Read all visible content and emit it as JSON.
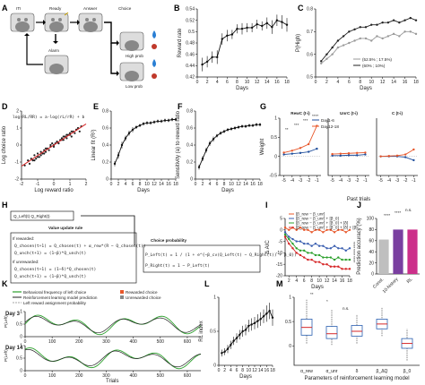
{
  "figure": {
    "panel_letters": [
      "A",
      "B",
      "C",
      "D",
      "E",
      "F",
      "G",
      "H",
      "I",
      "J",
      "K",
      "L",
      "M"
    ],
    "panelA": {
      "stage_labels": [
        "ITI",
        "Ready",
        "Answer",
        "Choice"
      ],
      "alarm": "Alarm",
      "high_prob": "High prob",
      "low_prob": "Low prob"
    },
    "panelD": {
      "equation": "log(RL/RR) = a·log(rL/rR) + b"
    },
    "panelH": {
      "q_top": "Q_Left(t)   Q_Right(t)",
      "update_title": "Value update rule",
      "if_rewarded": "If rewarded:",
      "rew_line1": "Q_chosen(t+1) = Q_chosen(t) + α_rew*(R − Q_chosen(t))",
      "rew_line2": "Q_unch(t+1) = (1−β)*Q_unch(t)",
      "if_unrewarded": "If unrewarded:",
      "unr_line1": "Q_chosen(t+1) = (1−δ)*Q_chosen(t)",
      "unr_line2": "Q_unch(t+1) = (1−β)*Q_unch(t)",
      "choice_title": "Choice probability",
      "p_left": "P_Left(t) = 1 / (1 + e^{−β_cv(Q_Left(t) − Q_Right(t)) + β_0})",
      "p_right": "P_Right(t) = 1 − P_Left(t)"
    },
    "panelK": {
      "legend": [
        "Behavioral frequency of left choice",
        "Reinforcement learning model prediction",
        "Left reward assignment probability",
        "Rewarded choice",
        "Unrewarded choice"
      ],
      "day3": "Day 3",
      "day14": "Day 14",
      "ylabel": "P(Left)",
      "xlabel": "Trials"
    }
  },
  "chart_data": [
    {
      "panel": "B",
      "type": "line",
      "xlabel": "Days",
      "ylabel": "Reward rate",
      "xticks": [
        0,
        2,
        4,
        6,
        8,
        10,
        12,
        14,
        16,
        18
      ],
      "yticks": [
        0.42,
        0.44,
        0.46,
        0.48,
        0.5,
        0.52,
        0.54
      ],
      "xlim": [
        0,
        18
      ],
      "ylim": [
        0.42,
        0.54
      ],
      "x": [
        1,
        2,
        3,
        4,
        5,
        6,
        7,
        8,
        9,
        10,
        11,
        12,
        13,
        14,
        15,
        16,
        17,
        18
      ],
      "values": [
        0.442,
        0.447,
        0.455,
        0.455,
        0.487,
        0.493,
        0.495,
        0.505,
        0.505,
        0.507,
        0.507,
        0.513,
        0.51,
        0.515,
        0.508,
        0.52,
        0.517,
        0.512
      ],
      "err": [
        0.012,
        0.01,
        0.01,
        0.012,
        0.01,
        0.01,
        0.008,
        0.008,
        0.01,
        0.008,
        0.008,
        0.008,
        0.008,
        0.01,
        0.012,
        0.01,
        0.012,
        0.012
      ]
    },
    {
      "panel": "C",
      "type": "line",
      "xlabel": "Days",
      "ylabel": "P(High)",
      "xticks": [
        0,
        2,
        4,
        6,
        8,
        10,
        12,
        14,
        16,
        18
      ],
      "yticks": [
        0.5,
        0.6,
        0.7,
        0.8
      ],
      "xlim": [
        0,
        18
      ],
      "ylim": [
        0.5,
        0.8
      ],
      "series": [
        {
          "name": "(52.5% ; 17.5%)",
          "color": "#999999",
          "values": [
            0.56,
            0.58,
            0.6,
            0.63,
            0.64,
            0.65,
            0.66,
            0.67,
            0.67,
            0.66,
            0.68,
            0.67,
            0.68,
            0.69,
            0.68,
            0.7,
            0.7,
            0.69
          ]
        },
        {
          "name": "(60% ; 10%)",
          "color": "#222222",
          "values": [
            0.57,
            0.6,
            0.63,
            0.66,
            0.68,
            0.7,
            0.71,
            0.72,
            0.72,
            0.73,
            0.73,
            0.74,
            0.74,
            0.75,
            0.74,
            0.75,
            0.76,
            0.75
          ]
        }
      ],
      "x": [
        1,
        2,
        3,
        4,
        5,
        6,
        7,
        8,
        9,
        10,
        11,
        12,
        13,
        14,
        15,
        16,
        17,
        18
      ]
    },
    {
      "panel": "D",
      "type": "scatter",
      "xlabel": "Log reward ratio",
      "ylabel": "Log choice ratio",
      "xticks": [
        -2,
        -1,
        0,
        1,
        2
      ],
      "yticks": [
        -2,
        -1,
        0,
        1,
        2
      ],
      "xlim": [
        -2,
        2
      ],
      "ylim": [
        -2,
        2
      ],
      "fit_line": {
        "slope": 0.62,
        "intercept": 0.0,
        "color": "#d62728"
      },
      "points_x": [
        -1.8,
        -1.6,
        -1.5,
        -1.4,
        -1.3,
        -1.2,
        -1.1,
        -1.0,
        -0.9,
        -0.8,
        -0.7,
        -0.6,
        -0.5,
        -0.4,
        -0.3,
        -0.2,
        -0.1,
        0.0,
        0.1,
        0.2,
        0.3,
        0.4,
        0.5,
        0.6,
        0.7,
        0.8,
        0.9,
        1.0,
        1.1,
        1.2,
        1.3,
        1.4,
        1.5,
        1.6,
        1.7,
        -1.2,
        -0.8,
        -0.5,
        -0.2,
        0.2,
        0.5,
        0.8,
        1.1,
        1.4,
        -1.0,
        -0.6,
        0.0,
        0.6,
        1.0
      ],
      "points_y": [
        -1.2,
        -0.9,
        -1.1,
        -0.8,
        -0.9,
        -0.6,
        -0.8,
        -0.5,
        -0.7,
        -0.4,
        -0.5,
        -0.3,
        -0.4,
        -0.2,
        -0.3,
        -0.1,
        0.1,
        0.0,
        0.1,
        0.2,
        0.1,
        0.3,
        0.4,
        0.3,
        0.5,
        0.4,
        0.6,
        0.7,
        0.5,
        0.8,
        0.7,
        0.9,
        1.0,
        0.8,
        1.1,
        -0.9,
        -0.6,
        -0.2,
        0.0,
        0.2,
        0.3,
        0.6,
        0.8,
        0.9,
        -0.7,
        -0.5,
        -0.1,
        0.5,
        0.6
      ]
    },
    {
      "panel": "E",
      "type": "line",
      "xlabel": "Days",
      "ylabel": "Linear fit (R²)",
      "xticks": [
        0,
        2,
        4,
        6,
        8,
        10,
        12,
        14,
        16,
        18
      ],
      "yticks": [
        0,
        0.2,
        0.4,
        0.6,
        0.8
      ],
      "xlim": [
        0,
        18
      ],
      "ylim": [
        0,
        0.8
      ],
      "x": [
        1,
        2,
        3,
        4,
        5,
        6,
        7,
        8,
        9,
        10,
        11,
        12,
        13,
        14,
        15,
        16,
        17,
        18
      ],
      "values": [
        0.18,
        0.28,
        0.4,
        0.48,
        0.54,
        0.58,
        0.61,
        0.63,
        0.65,
        0.66,
        0.66,
        0.67,
        0.68,
        0.68,
        0.69,
        0.69,
        0.7,
        0.7
      ],
      "err": [
        0.03,
        0.04,
        0.04,
        0.03,
        0.03,
        0.03,
        0.02,
        0.02,
        0.02,
        0.02,
        0.02,
        0.02,
        0.02,
        0.02,
        0.02,
        0.02,
        0.02,
        0.02
      ]
    },
    {
      "panel": "F",
      "type": "line",
      "xlabel": "Days",
      "ylabel": "Sensitivity (a) to reward ratio",
      "xticks": [
        0,
        2,
        4,
        6,
        8,
        10,
        12,
        14,
        16,
        18
      ],
      "yticks": [
        0,
        0.2,
        0.4,
        0.6,
        0.8
      ],
      "xlim": [
        0,
        18
      ],
      "ylim": [
        0,
        0.8
      ],
      "x": [
        1,
        2,
        3,
        4,
        5,
        6,
        7,
        8,
        9,
        10,
        11,
        12,
        13,
        14,
        15,
        16,
        17,
        18
      ],
      "values": [
        0.14,
        0.24,
        0.34,
        0.42,
        0.47,
        0.51,
        0.54,
        0.56,
        0.58,
        0.59,
        0.6,
        0.61,
        0.62,
        0.62,
        0.63,
        0.63,
        0.64,
        0.64
      ],
      "err": [
        0.03,
        0.03,
        0.03,
        0.03,
        0.03,
        0.02,
        0.02,
        0.02,
        0.02,
        0.02,
        0.02,
        0.02,
        0.02,
        0.02,
        0.02,
        0.02,
        0.02,
        0.02
      ]
    },
    {
      "panel": "G",
      "type": "line",
      "ylabel": "Weight",
      "xlabel": "Past trials",
      "subpanels": [
        {
          "title": "RewC (t-i)",
          "x": [
            -5,
            -4,
            -3,
            -2,
            -1
          ],
          "series": [
            {
              "name": "Day1-6",
              "color": "#1f4e9c",
              "values": [
                0.05,
                0.07,
                0.09,
                0.12,
                0.2
              ]
            },
            {
              "name": "Day12-18",
              "color": "#e8572a",
              "values": [
                0.1,
                0.15,
                0.22,
                0.32,
                0.8
              ]
            }
          ]
        },
        {
          "title": "UnrC (t-i)",
          "x": [
            -5,
            -4,
            -3,
            -2,
            -1
          ],
          "series": [
            {
              "name": "Day1-6",
              "color": "#1f4e9c",
              "values": [
                0.02,
                0.02,
                0.03,
                0.03,
                0.05
              ]
            },
            {
              "name": "Day12-18",
              "color": "#e8572a",
              "values": [
                0.06,
                0.07,
                0.08,
                0.09,
                0.1
              ]
            }
          ]
        },
        {
          "title": "C (t-i)",
          "x": [
            -5,
            -4,
            -3,
            -2,
            -1
          ],
          "series": [
            {
              "name": "Day1-6",
              "color": "#1f4e9c",
              "values": [
                0.0,
                0.0,
                0.0,
                -0.02,
                -0.1
              ]
            },
            {
              "name": "Day12-18",
              "color": "#e8572a",
              "values": [
                0.0,
                0.01,
                0.02,
                0.05,
                0.18
              ]
            }
          ]
        }
      ],
      "yticks": [
        -0.5,
        0,
        0.5,
        1.0
      ],
      "ylim": [
        -0.5,
        1.0
      ],
      "sig_marks": [
        "**",
        "***",
        "***",
        "****"
      ]
    },
    {
      "panel": "I",
      "type": "line",
      "xlabel": "Days",
      "ylabel": "Δ AIC",
      "xticks": [
        2,
        4,
        6,
        8,
        10,
        12,
        14,
        16,
        18
      ],
      "yticks": [
        -20,
        -15,
        -10,
        -5,
        0,
        5
      ],
      "xlim": [
        1,
        18
      ],
      "ylim": [
        -20,
        5
      ],
      "x": [
        1,
        2,
        3,
        4,
        5,
        6,
        7,
        8,
        9,
        10,
        11,
        12,
        13,
        14,
        15,
        16,
        17,
        18
      ],
      "series": [
        {
          "name": "[β_rew − β_unr]",
          "color": "#e8572a",
          "values": [
            1,
            0,
            1,
            0,
            1,
            0,
            0,
            -1,
            0,
            0,
            -1,
            0,
            0,
            -1,
            0,
            0,
            -1,
            0
          ]
        },
        {
          "name": "[β_rew − β_unr] + [β_0]",
          "color": "#3b5fb0",
          "values": [
            -1,
            -3,
            -4,
            -5,
            -5,
            -6,
            -6,
            -7,
            -6,
            -7,
            -7,
            -8,
            -8,
            -7,
            -8,
            -8,
            -9,
            -8
          ]
        },
        {
          "name": "[β_rew − β_unr] + [β_0] + [δ]",
          "color": "#2ca02c",
          "values": [
            -2,
            -4,
            -6,
            -8,
            -9,
            -9,
            -10,
            -10,
            -11,
            -11,
            -12,
            -12,
            -12,
            -13,
            -12,
            -13,
            -13,
            -13
          ]
        },
        {
          "name": "[β_rew − β_unr] + [β_0] + [δ] + [β]",
          "color": "#d62728",
          "values": [
            -3,
            -6,
            -8,
            -10,
            -11,
            -12,
            -13,
            -13,
            -14,
            -14,
            -15,
            -15,
            -16,
            -16,
            -16,
            -17,
            -17,
            -17
          ]
        }
      ],
      "sig_marks": [
        "****",
        "****",
        "****"
      ]
    },
    {
      "panel": "J",
      "type": "bar",
      "ylabel": "Prediction accuracy (%)",
      "categories": [
        "Const.",
        "10-history",
        "RL"
      ],
      "values": [
        62,
        80,
        80
      ],
      "colors": [
        "#bfbfbf",
        "#7a3fa0",
        "#cc2f8a"
      ],
      "yticks": [
        0,
        20,
        40,
        60,
        80,
        100
      ],
      "ylim": [
        0,
        100
      ],
      "sig_marks": [
        "****",
        "****",
        "n.s."
      ]
    },
    {
      "panel": "K",
      "type": "line",
      "subpanels": [
        {
          "title": "Day 3",
          "xticks": [
            0,
            100,
            200,
            300,
            400,
            500,
            600
          ],
          "yticks": [
            0,
            0.5,
            1
          ]
        },
        {
          "title": "Day 14",
          "xticks": [
            0,
            100,
            200,
            300,
            400,
            500,
            600
          ],
          "yticks": [
            0,
            0.5,
            1
          ]
        }
      ]
    },
    {
      "panel": "L",
      "type": "line",
      "xlabel": "Days",
      "ylabel": "RL index",
      "xticks": [
        0,
        2,
        4,
        6,
        8,
        10,
        12,
        14,
        16,
        18
      ],
      "yticks": [
        0.0,
        0.5,
        1.0
      ],
      "xlim": [
        0,
        18
      ],
      "ylim": [
        0,
        1.0
      ],
      "x": [
        1,
        2,
        3,
        4,
        5,
        6,
        7,
        8,
        9,
        10,
        11,
        12,
        13,
        14,
        15,
        16,
        17,
        18
      ],
      "values": [
        0.18,
        0.2,
        0.24,
        0.3,
        0.36,
        0.4,
        0.45,
        0.5,
        0.52,
        0.58,
        0.6,
        0.62,
        0.65,
        0.68,
        0.72,
        0.76,
        0.8,
        0.7
      ],
      "err": [
        0.05,
        0.05,
        0.06,
        0.06,
        0.06,
        0.07,
        0.07,
        0.08,
        0.08,
        0.09,
        0.09,
        0.09,
        0.1,
        0.1,
        0.1,
        0.12,
        0.12,
        0.12
      ]
    },
    {
      "panel": "M",
      "type": "box",
      "xlabel": "Parameters of reinforcement learning model",
      "groups": [
        {
          "label": "α_rew",
          "median": 0.38,
          "q1": 0.22,
          "q3": 0.55,
          "min": 0.05,
          "max": 0.95
        },
        {
          "label": "α_unr",
          "median": 0.25,
          "q1": 0.15,
          "q3": 0.4,
          "min": 0.02,
          "max": 0.75
        },
        {
          "label": "δ",
          "median": 0.3,
          "q1": 0.2,
          "q3": 0.42,
          "min": 0.05,
          "max": 0.65
        },
        {
          "label": "β_ΔQ",
          "median": 0.45,
          "q1": 0.35,
          "q3": 0.55,
          "min": 0.2,
          "max": 0.8
        },
        {
          "label": "β_0",
          "median": 0.05,
          "q1": -0.05,
          "q3": 0.15,
          "min": -0.3,
          "max": 0.35
        }
      ],
      "sig_marks": [
        "**",
        "*",
        "n.s."
      ]
    }
  ]
}
